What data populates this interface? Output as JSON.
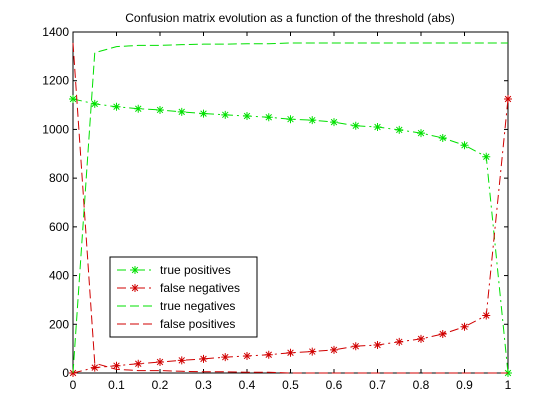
{
  "chart_data": {
    "type": "line",
    "title": "Confusion matrix evolution as a function of the threshold (abs)",
    "xlabel": "",
    "ylabel": "",
    "xlim": [
      0,
      1
    ],
    "ylim": [
      0,
      1400
    ],
    "xticks": [
      0,
      0.1,
      0.2,
      0.3,
      0.4,
      0.5,
      0.6,
      0.7,
      0.8,
      0.9,
      1
    ],
    "yticks": [
      0,
      200,
      400,
      600,
      800,
      1000,
      1200,
      1400
    ],
    "xtick_labels": [
      "0",
      "0.1",
      "0.2",
      "0.3",
      "0.4",
      "0.5",
      "0.6",
      "0.7",
      "0.8",
      "0.9",
      "1"
    ],
    "ytick_labels": [
      "0",
      "200",
      "400",
      "600",
      "800",
      "1000",
      "1200",
      "1400"
    ],
    "grid": false,
    "legend_position": "lower-left",
    "x": [
      0,
      0.05,
      0.1,
      0.15,
      0.2,
      0.25,
      0.3,
      0.35,
      0.4,
      0.45,
      0.5,
      0.55,
      0.6,
      0.65,
      0.7,
      0.75,
      0.8,
      0.85,
      0.9,
      0.95,
      1
    ],
    "series": [
      {
        "name": "true positives",
        "color": "#00e000",
        "dash": "dashdot",
        "marker": "star",
        "values": [
          1125,
          1105,
          1093,
          1085,
          1080,
          1072,
          1065,
          1060,
          1055,
          1050,
          1042,
          1038,
          1030,
          1015,
          1010,
          998,
          985,
          965,
          935,
          888,
          0
        ]
      },
      {
        "name": "false negatives",
        "color": "#d00000",
        "dash": "dashdot",
        "marker": "star",
        "values": [
          0,
          22,
          30,
          38,
          45,
          52,
          58,
          65,
          70,
          75,
          83,
          88,
          95,
          110,
          115,
          128,
          140,
          160,
          190,
          236,
          1125
        ]
      },
      {
        "name": "true negatives",
        "color": "#00e000",
        "dash": "dashed",
        "marker": "none",
        "values": [
          0,
          1315,
          1340,
          1345,
          1345,
          1348,
          1350,
          1350,
          1352,
          1352,
          1355,
          1355,
          1355,
          1355,
          1355,
          1355,
          1355,
          1355,
          1355,
          1355,
          1355
        ]
      },
      {
        "name": "false positives",
        "color": "#d00000",
        "dash": "dashed",
        "marker": "none",
        "values": [
          1355,
          40,
          15,
          10,
          10,
          7,
          5,
          5,
          3,
          3,
          0,
          0,
          0,
          0,
          0,
          0,
          0,
          0,
          0,
          0,
          0
        ]
      }
    ]
  }
}
